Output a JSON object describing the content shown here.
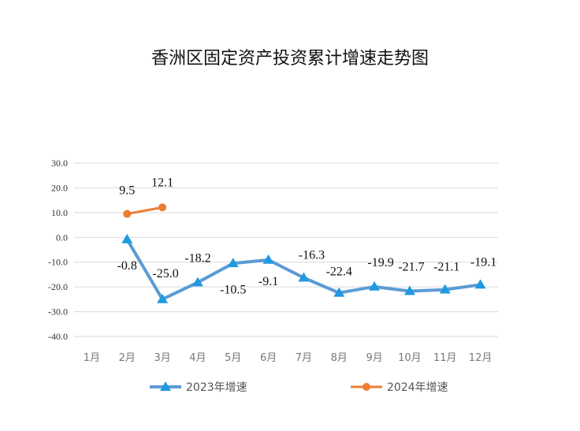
{
  "chart_data": {
    "type": "line",
    "title": "香洲区固定资产投资累计增速走势图",
    "xlabel": "",
    "ylabel": "",
    "categories": [
      "1月",
      "2月",
      "3月",
      "4月",
      "5月",
      "6月",
      "7月",
      "8月",
      "9月",
      "10月",
      "11月",
      "12月"
    ],
    "y_ticks": [
      "30.0",
      "20.0",
      "10.0",
      "0.0",
      "-10.0",
      "-20.0",
      "-30.0",
      "-40.0"
    ],
    "ylim": [
      -40,
      30
    ],
    "grid": true,
    "legend_position": "bottom",
    "series": [
      {
        "name": "2023年增速",
        "color": "#5b9bd5",
        "marker": "triangle",
        "values": [
          null,
          -0.8,
          -25.0,
          -18.2,
          -10.5,
          -9.1,
          -16.3,
          -22.4,
          -19.9,
          -21.7,
          -21.1,
          -19.1
        ],
        "labels": [
          null,
          "-0.8",
          "-25.0",
          "-18.2",
          "-10.5",
          "-9.1",
          "-16.3",
          "-22.4",
          "-19.9",
          "-21.7",
          "-21.1",
          "-19.1"
        ]
      },
      {
        "name": "2024年增速",
        "color": "#ed7d31",
        "marker": "circle",
        "values": [
          null,
          9.5,
          12.1,
          null,
          null,
          null,
          null,
          null,
          null,
          null,
          null,
          null
        ],
        "labels": [
          null,
          "9.5",
          "12.1",
          null,
          null,
          null,
          null,
          null,
          null,
          null,
          null,
          null
        ]
      }
    ]
  }
}
